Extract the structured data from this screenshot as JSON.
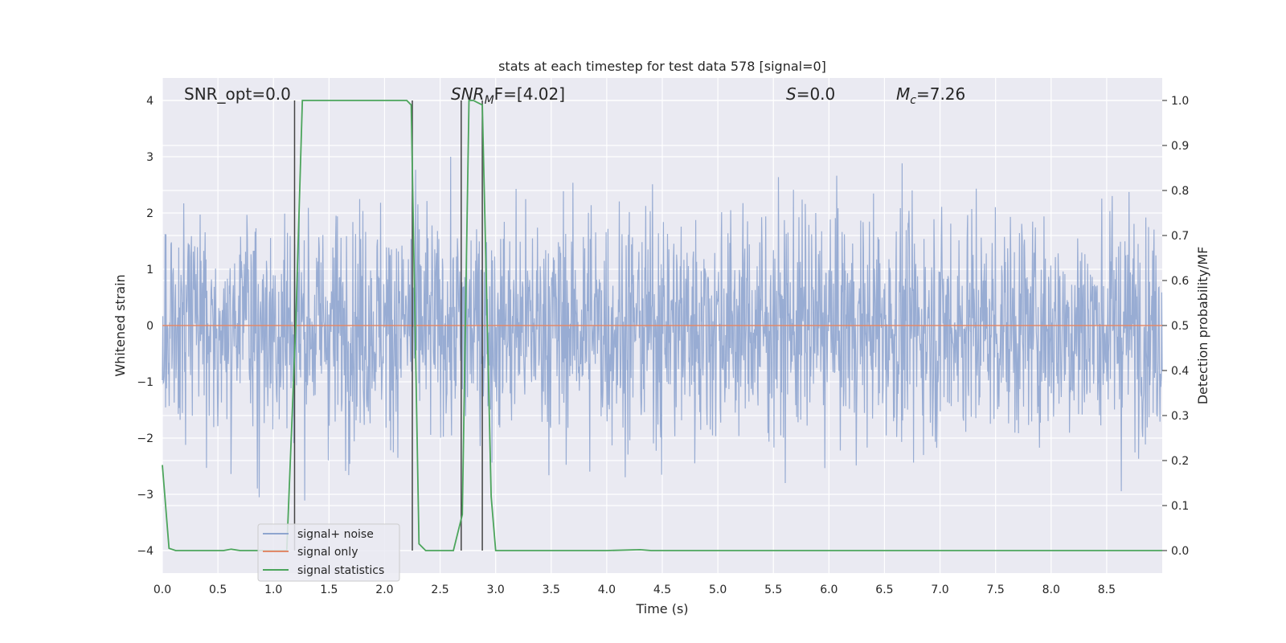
{
  "chart_data": {
    "type": "line",
    "title": "stats at each timestep for test data 578 [signal=0]",
    "xlabel": "Time (s)",
    "ylabel": "Whitened strain",
    "y2label": "Detection probability/MF",
    "xlim": [
      0,
      9
    ],
    "ylim": [
      -4.4,
      4.4
    ],
    "y2lim": [
      -0.05,
      1.05
    ],
    "grid": true,
    "x_ticks": [
      "0.0",
      "0.5",
      "1.0",
      "1.5",
      "2.0",
      "2.5",
      "3.0",
      "3.5",
      "4.0",
      "4.5",
      "5.0",
      "5.5",
      "6.0",
      "6.5",
      "7.0",
      "7.5",
      "8.0",
      "8.5"
    ],
    "y_ticks": [
      "−4",
      "−3",
      "−2",
      "−1",
      "0",
      "1",
      "2",
      "3",
      "4"
    ],
    "y2_ticks": [
      "0.0",
      "0.1",
      "0.2",
      "0.3",
      "0.4",
      "0.5",
      "0.6",
      "0.7",
      "0.8",
      "0.9",
      "1.0"
    ],
    "legend_position": "lower-left",
    "annotations": {
      "snr_opt": "SNR_opt=0.0",
      "snr_mf_main": "SNR",
      "snr_mf_sub": "M",
      "snr_mf_rest": "F=[4.02]",
      "s_var": "S",
      "s_rest": "=0.0",
      "mc_main": "M",
      "mc_sub": "c",
      "mc_rest": "=7.26"
    },
    "vertical_markers_s": [
      1.19,
      2.25,
      2.69,
      2.88
    ],
    "series": [
      {
        "name": "signal+ noise",
        "color": "#8fa5cf",
        "kind": "noise",
        "description_values": {
          "rms": 1.0,
          "x_start": 0.0,
          "x_end": 9.0
        }
      },
      {
        "name": "signal only",
        "color": "#e1896a",
        "kind": "line",
        "x": [
          0.0,
          9.0
        ],
        "values": [
          0.0,
          0.0
        ]
      },
      {
        "name": "signal statistics",
        "color": "#4ca55c",
        "kind": "line",
        "axis": "right",
        "x": [
          0.0,
          0.06,
          0.12,
          0.5,
          0.55,
          0.62,
          0.7,
          1.0,
          1.12,
          1.2,
          1.26,
          1.5,
          2.0,
          2.2,
          2.24,
          2.31,
          2.37,
          2.5,
          2.62,
          2.7,
          2.76,
          2.8,
          2.88,
          2.96,
          3.0,
          3.5,
          4.0,
          4.3,
          4.4,
          5.0,
          6.0,
          7.0,
          8.0,
          9.0
        ],
        "values": [
          0.19,
          0.005,
          0.0,
          0.0,
          0.0,
          0.003,
          0.0,
          0.0,
          0.0,
          0.5,
          1.0,
          1.0,
          1.0,
          1.0,
          0.99,
          0.015,
          0.0,
          0.0,
          0.0,
          0.08,
          1.0,
          1.0,
          0.99,
          0.12,
          0.0,
          0.0,
          0.0,
          0.002,
          0.0,
          0.0,
          0.0,
          0.0,
          0.0,
          0.0
        ]
      }
    ]
  }
}
